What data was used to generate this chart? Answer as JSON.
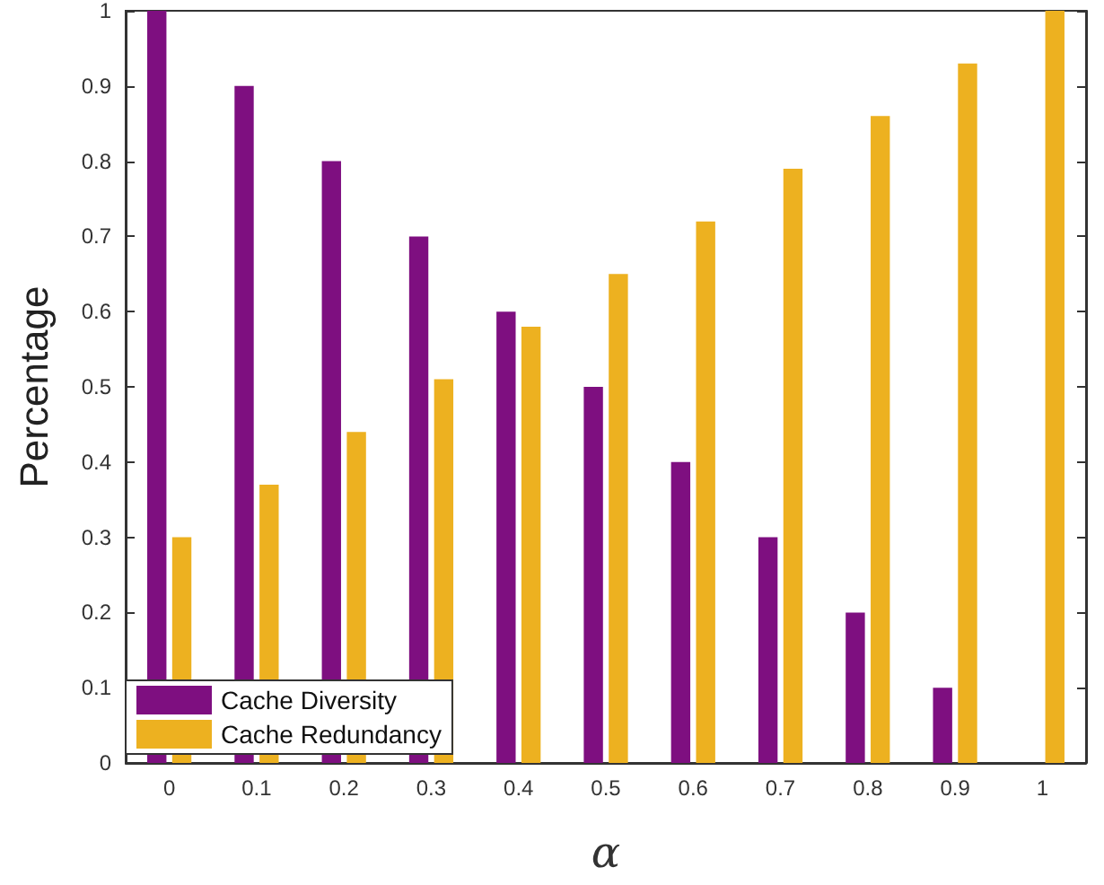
{
  "chart_data": {
    "type": "bar",
    "xlabel": "α",
    "ylabel": "Percentage",
    "categories": [
      "0",
      "0.1",
      "0.2",
      "0.3",
      "0.4",
      "0.5",
      "0.6",
      "0.7",
      "0.8",
      "0.9",
      "1"
    ],
    "series": [
      {
        "name": "Cache Diversity",
        "color": "#7e0f80",
        "values": [
          1,
          0.9,
          0.8,
          0.7,
          0.6,
          0.5,
          0.4,
          0.3,
          0.2,
          0.1,
          0
        ]
      },
      {
        "name": "Cache Redundancy",
        "color": "#edb120",
        "values": [
          0.3,
          0.37,
          0.44,
          0.51,
          0.58,
          0.65,
          0.72,
          0.79,
          0.86,
          0.93,
          1
        ]
      }
    ],
    "ylim": [
      0,
      1
    ],
    "yticks": [
      0,
      0.1,
      0.2,
      0.3,
      0.4,
      0.5,
      0.6,
      0.7,
      0.8,
      0.9,
      1
    ],
    "grid": false,
    "legend": "bottom left"
  }
}
